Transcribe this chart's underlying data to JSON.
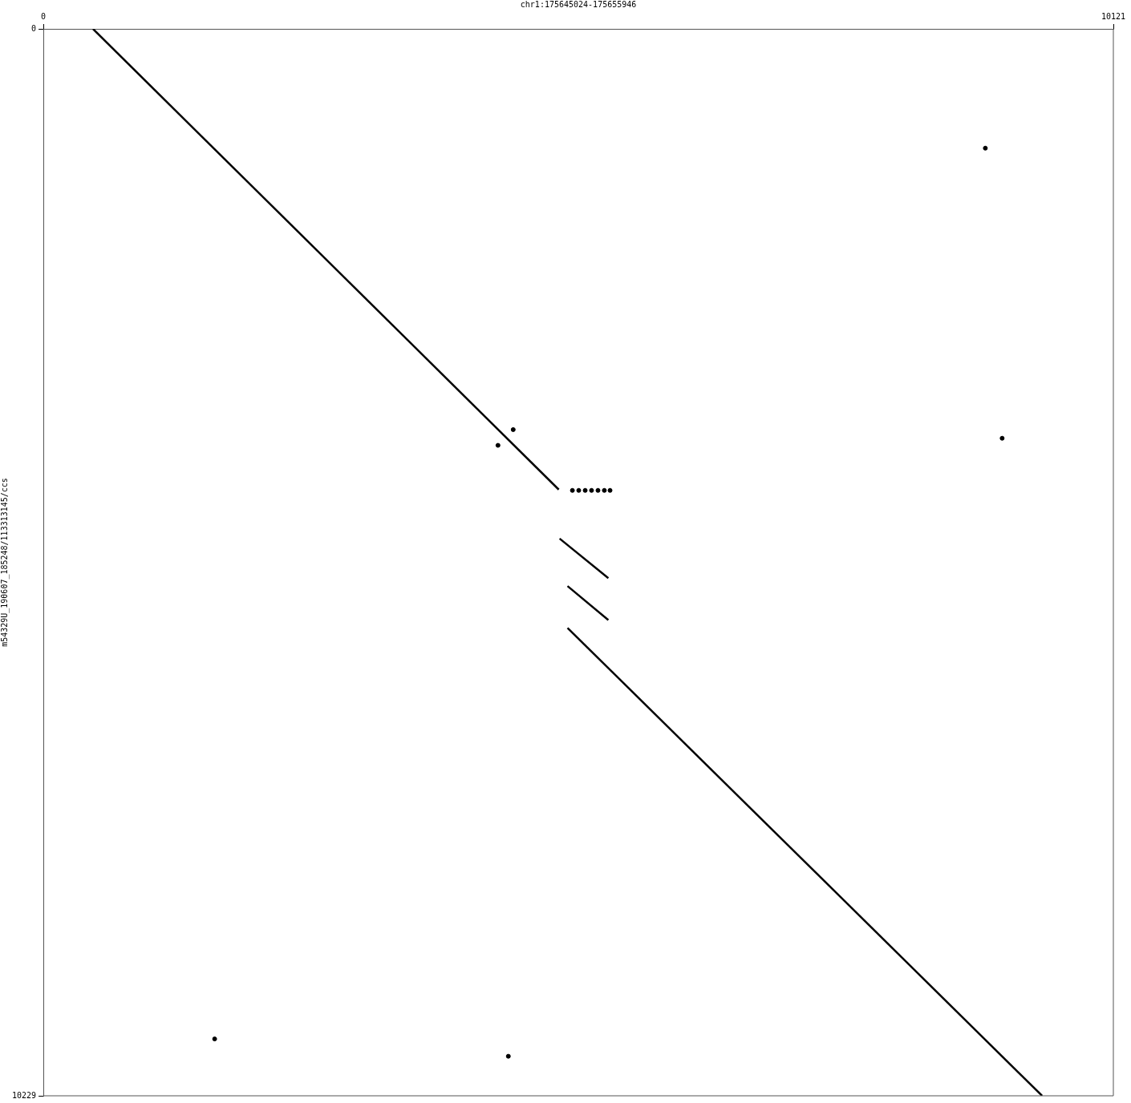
{
  "chart_data": {
    "type": "line",
    "xlabel": "chr1:175645024-175655946",
    "ylabel": "m54329U_190607_185248/113313145/ccs",
    "xlim": [
      0,
      10121
    ],
    "ylim": [
      10229,
      0
    ],
    "xticks": [
      0,
      10121
    ],
    "yticks": [
      0,
      10229
    ],
    "grid": false,
    "legend": false,
    "line_style": "solid",
    "series": [
      {
        "color": "#000000",
        "x": [
          469,
          4875
        ],
        "values": [
          0,
          4417
        ]
      },
      {
        "color": "#000000",
        "x": [
          4883,
          5344
        ],
        "values": [
          4887,
          5266
        ]
      },
      {
        "color": "#000000",
        "x": [
          4958,
          5344
        ],
        "values": [
          5342,
          5668
        ]
      },
      {
        "color": "#000000",
        "x": [
          4958,
          9447
        ],
        "values": [
          5743,
          10229
        ]
      },
      {
        "type": "scatter",
        "marker": "circle",
        "color": "#000000",
        "x": [
          8910,
          9069,
          4444,
          4300,
          1620,
          4398,
          5004,
          5064,
          5125,
          5185,
          5246,
          5306,
          5360
        ],
        "values": [
          1144,
          3925,
          3842,
          3993,
          9684,
          9850,
          4425,
          4425,
          4425,
          4425,
          4425,
          4425,
          4425
        ]
      }
    ]
  }
}
